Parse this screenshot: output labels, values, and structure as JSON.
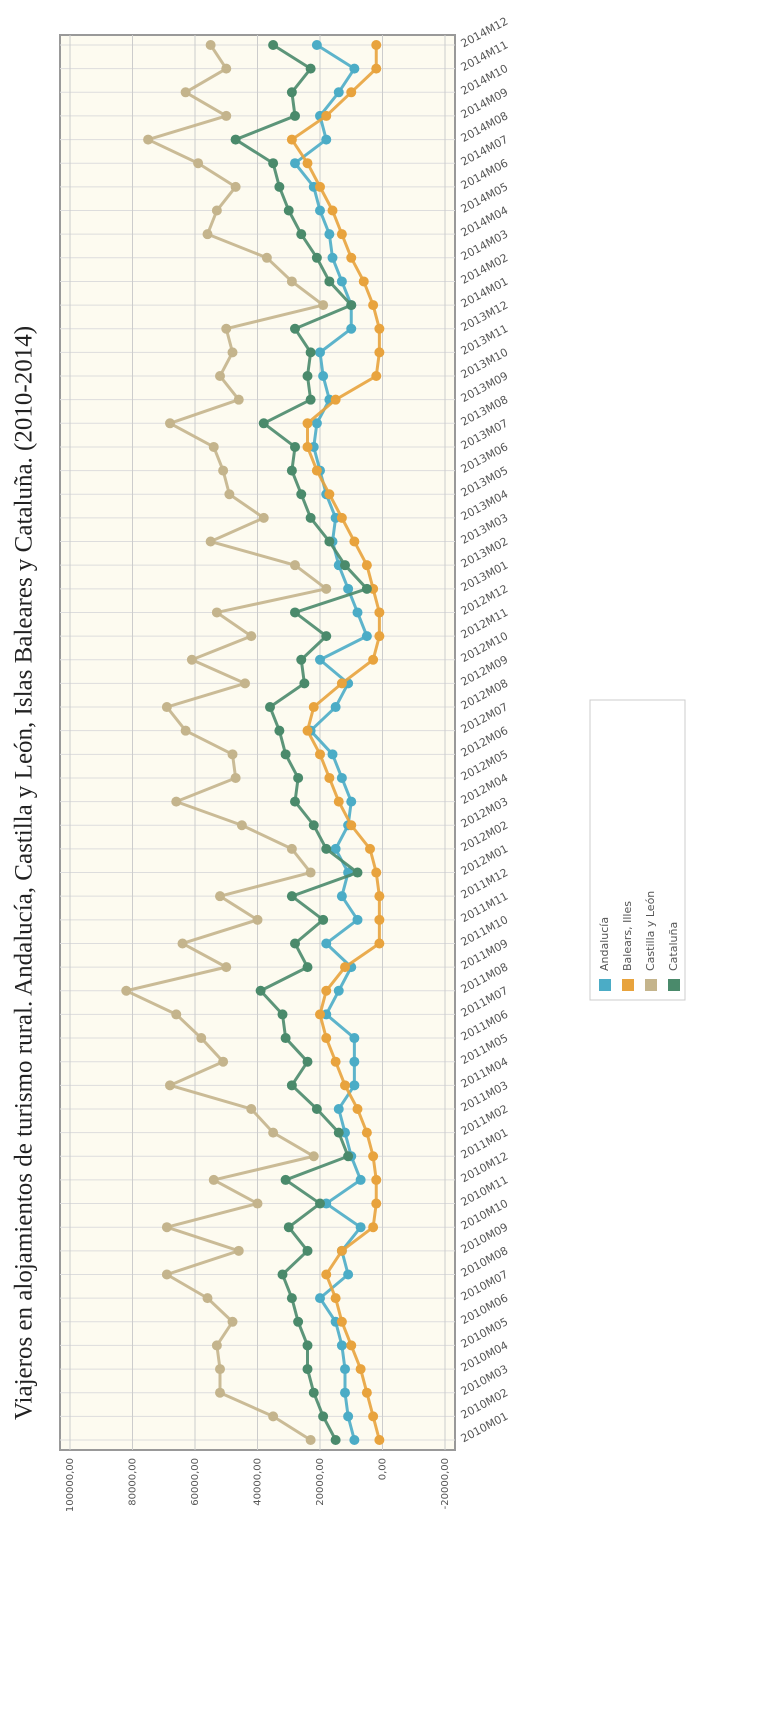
{
  "chart_data": {
    "type": "line",
    "title": "Viajeros en alojamientos de turismo rural. Andalucía, Castilla y León, Islas Baleares y Cataluña. (2010-2014)",
    "categories": [
      "2010M01",
      "2010M02",
      "2010M03",
      "2010M04",
      "2010M05",
      "2010M06",
      "2010M07",
      "2010M08",
      "2010M09",
      "2010M10",
      "2010M11",
      "2010M12",
      "2011M01",
      "2011M02",
      "2011M03",
      "2011M04",
      "2011M05",
      "2011M06",
      "2011M07",
      "2011M08",
      "2011M09",
      "2011M10",
      "2011M11",
      "2011M12",
      "2012M01",
      "2012M02",
      "2012M03",
      "2012M04",
      "2012M05",
      "2012M06",
      "2012M07",
      "2012M08",
      "2012M09",
      "2012M10",
      "2012M11",
      "2012M12",
      "2013M01",
      "2013M02",
      "2013M03",
      "2013M04",
      "2013M05",
      "2013M06",
      "2013M07",
      "2013M08",
      "2013M09",
      "2013M10",
      "2013M11",
      "2013M12",
      "2014M01",
      "2014M02",
      "2014M03",
      "2014M04",
      "2014M05",
      "2014M06",
      "2014M07",
      "2014M08",
      "2014M09",
      "2014M10",
      "2014M11",
      "2014M12"
    ],
    "series": [
      {
        "name": "Andalucía",
        "color": "#4bacc6",
        "values": [
          9000,
          11000,
          12000,
          12000,
          13000,
          15000,
          20000,
          11000,
          13000,
          7000,
          18000,
          7000,
          10000,
          12000,
          14000,
          9000,
          9000,
          9000,
          18000,
          14000,
          10000,
          18000,
          8000,
          13000,
          11000,
          15000,
          11000,
          10000,
          13000,
          16000,
          23000,
          15000,
          11000,
          20000,
          5000,
          8000,
          11000,
          14000,
          16000,
          15000,
          18000,
          20000,
          22000,
          21000,
          17000,
          19000,
          20000,
          10000,
          10000,
          13000,
          16000,
          17000,
          20000,
          22000,
          28000,
          18000,
          20000,
          14000,
          9000,
          21000
        ]
      },
      {
        "name": "Balears, Illes",
        "color": "#e8a33d",
        "values": [
          1000,
          3000,
          5000,
          7000,
          10000,
          13000,
          15000,
          18000,
          13000,
          3000,
          2000,
          2000,
          3000,
          5000,
          8000,
          12000,
          15000,
          18000,
          20000,
          18000,
          12000,
          1000,
          1000,
          1000,
          2000,
          4000,
          10000,
          14000,
          17000,
          20000,
          24000,
          22000,
          13000,
          3000,
          1000,
          1000,
          3000,
          5000,
          9000,
          13000,
          17000,
          21000,
          24000,
          24000,
          15000,
          2000,
          1000,
          1000,
          3000,
          6000,
          10000,
          13000,
          16000,
          20000,
          24000,
          29000,
          18000,
          10000,
          2000,
          2000
        ]
      },
      {
        "name": "Castilla y León",
        "color": "#c4b48c",
        "values": [
          23000,
          35000,
          52000,
          52000,
          53000,
          48000,
          56000,
          69000,
          46000,
          69000,
          40000,
          54000,
          22000,
          35000,
          42000,
          68000,
          51000,
          58000,
          66000,
          82000,
          50000,
          64000,
          40000,
          52000,
          23000,
          29000,
          45000,
          66000,
          47000,
          48000,
          63000,
          69000,
          44000,
          61000,
          42000,
          53000,
          18000,
          28000,
          55000,
          38000,
          49000,
          51000,
          54000,
          68000,
          46000,
          52000,
          48000,
          50000,
          19000,
          29000,
          37000,
          56000,
          53000,
          47000,
          59000,
          75000,
          50000,
          63000,
          50000,
          55000
        ]
      },
      {
        "name": "Cataluña",
        "color": "#4a8a6b",
        "values": [
          15000,
          19000,
          22000,
          24000,
          24000,
          27000,
          29000,
          32000,
          24000,
          30000,
          20000,
          31000,
          11000,
          14000,
          21000,
          29000,
          24000,
          31000,
          32000,
          39000,
          24000,
          28000,
          19000,
          29000,
          8000,
          18000,
          22000,
          28000,
          27000,
          31000,
          33000,
          36000,
          25000,
          26000,
          18000,
          28000,
          5000,
          12000,
          17000,
          23000,
          26000,
          29000,
          28000,
          38000,
          23000,
          24000,
          23000,
          28000,
          10000,
          17000,
          21000,
          26000,
          30000,
          33000,
          35000,
          47000,
          28000,
          29000,
          23000,
          35000
        ]
      }
    ],
    "ylim": [
      -20000,
      100000
    ],
    "yticks": [
      {
        "value": -20000,
        "label": "-20000,00"
      },
      {
        "value": 0,
        "label": "0,00"
      },
      {
        "value": 20000,
        "label": "20000,00"
      },
      {
        "value": 40000,
        "label": "40000,00"
      },
      {
        "value": 60000,
        "label": "60000,00"
      },
      {
        "value": 80000,
        "label": "80000,00"
      },
      {
        "value": 100000,
        "label": "100000,00"
      }
    ],
    "grid": true
  }
}
